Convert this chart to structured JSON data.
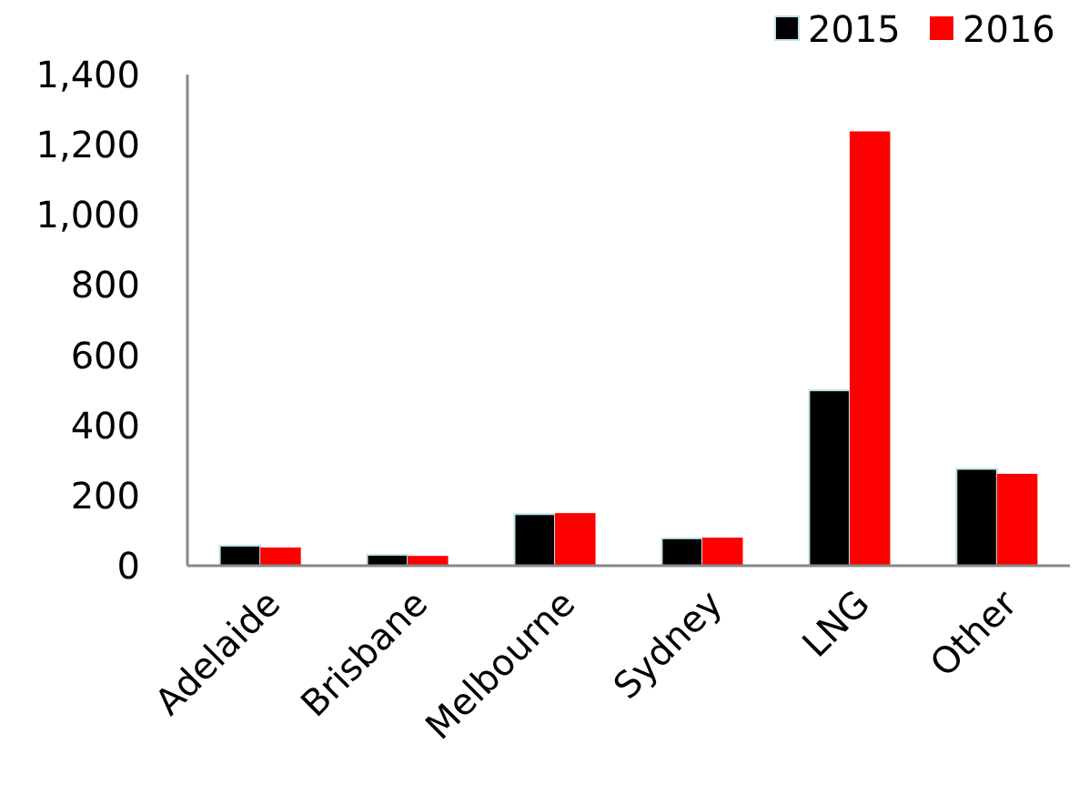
{
  "chart_data": {
    "type": "bar",
    "categories": [
      "Adelaide",
      "Brisbane",
      "Melbourne",
      "Sydney",
      "LNG",
      "Other"
    ],
    "series": [
      {
        "name": "2015",
        "color": "#000000",
        "values": [
          57,
          31,
          147,
          78,
          500,
          276
        ]
      },
      {
        "name": "2016",
        "color": "#ff0000",
        "values": [
          52,
          28,
          150,
          80,
          1238,
          262
        ]
      }
    ],
    "ylim": [
      0,
      1400
    ],
    "yticks": [
      {
        "value": 0,
        "label": "0"
      },
      {
        "value": 200,
        "label": "200"
      },
      {
        "value": 400,
        "label": "400"
      },
      {
        "value": 600,
        "label": "600"
      },
      {
        "value": 800,
        "label": "800"
      },
      {
        "value": 1000,
        "label": "1,000"
      },
      {
        "value": 1200,
        "label": "1,200"
      },
      {
        "value": 1400,
        "label": "1,400"
      }
    ],
    "grid": false,
    "legend": "top right"
  }
}
